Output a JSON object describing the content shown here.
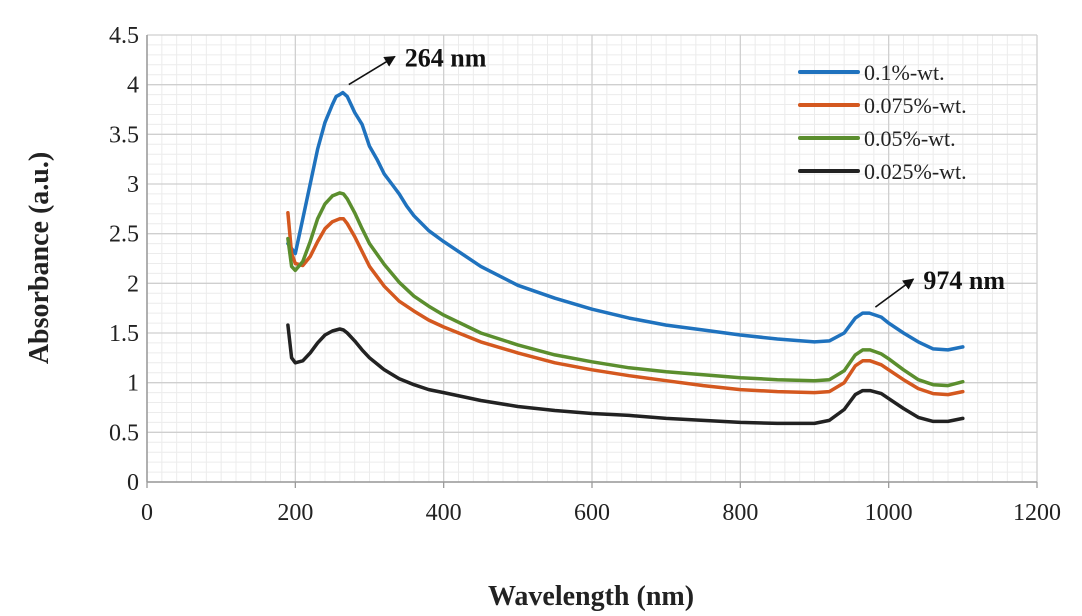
{
  "chart_data": {
    "type": "line",
    "title": "",
    "xlabel": "Wavelength (nm)",
    "ylabel": "Absorbance (a.u.)",
    "xlim": [
      0,
      1200
    ],
    "ylim": [
      0,
      4.5
    ],
    "xticks": [
      0,
      200,
      400,
      600,
      800,
      1000,
      1200
    ],
    "yticks": [
      0,
      0.5,
      1,
      1.5,
      2,
      2.5,
      3,
      3.5,
      4,
      4.5
    ],
    "ytick_labels": [
      "0",
      "0.5",
      "1",
      "1.5",
      "2",
      "2.5",
      "3",
      "3.5",
      "4",
      "4.5"
    ],
    "grid": "major and minor",
    "legend_position": "top-right",
    "series": [
      {
        "name": "0.1%-wt.",
        "color": "#1f72be",
        "x": [
          190,
          200,
          210,
          220,
          230,
          240,
          250,
          255,
          260,
          264,
          270,
          275,
          280,
          290,
          300,
          310,
          320,
          330,
          340,
          350,
          360,
          380,
          400,
          450,
          500,
          550,
          600,
          650,
          700,
          750,
          800,
          850,
          900,
          920,
          940,
          955,
          965,
          974,
          990,
          1000,
          1020,
          1040,
          1060,
          1080,
          1100
        ],
        "y": [
          2.4,
          2.3,
          2.65,
          3.0,
          3.35,
          3.62,
          3.8,
          3.88,
          3.9,
          3.92,
          3.88,
          3.8,
          3.72,
          3.6,
          3.38,
          3.25,
          3.1,
          3.0,
          2.9,
          2.78,
          2.68,
          2.53,
          2.42,
          2.17,
          1.98,
          1.85,
          1.74,
          1.65,
          1.58,
          1.53,
          1.48,
          1.44,
          1.41,
          1.42,
          1.5,
          1.65,
          1.7,
          1.7,
          1.66,
          1.6,
          1.5,
          1.41,
          1.34,
          1.33,
          1.36
        ]
      },
      {
        "name": "0.075%-wt.",
        "color": "#d4581f",
        "x": [
          190,
          195,
          200,
          210,
          220,
          230,
          240,
          250,
          260,
          265,
          270,
          280,
          290,
          300,
          320,
          340,
          360,
          380,
          400,
          450,
          500,
          550,
          600,
          650,
          700,
          750,
          800,
          850,
          900,
          920,
          940,
          955,
          965,
          975,
          990,
          1000,
          1020,
          1040,
          1060,
          1080,
          1100
        ],
        "y": [
          2.71,
          2.3,
          2.2,
          2.18,
          2.27,
          2.42,
          2.55,
          2.62,
          2.65,
          2.65,
          2.6,
          2.47,
          2.32,
          2.17,
          1.97,
          1.82,
          1.72,
          1.63,
          1.56,
          1.41,
          1.3,
          1.2,
          1.13,
          1.07,
          1.02,
          0.97,
          0.93,
          0.91,
          0.9,
          0.91,
          1.0,
          1.17,
          1.22,
          1.22,
          1.18,
          1.13,
          1.03,
          0.94,
          0.89,
          0.88,
          0.91
        ]
      },
      {
        "name": "0.05%-wt.",
        "color": "#5b8e2e",
        "x": [
          190,
          195,
          200,
          210,
          220,
          230,
          240,
          250,
          260,
          265,
          270,
          280,
          290,
          300,
          320,
          340,
          360,
          380,
          400,
          450,
          500,
          550,
          600,
          650,
          700,
          750,
          800,
          850,
          900,
          920,
          940,
          955,
          965,
          975,
          990,
          1000,
          1020,
          1040,
          1060,
          1080,
          1100
        ],
        "y": [
          2.45,
          2.17,
          2.13,
          2.22,
          2.42,
          2.65,
          2.8,
          2.88,
          2.91,
          2.9,
          2.85,
          2.71,
          2.55,
          2.4,
          2.19,
          2.01,
          1.87,
          1.77,
          1.68,
          1.5,
          1.38,
          1.28,
          1.21,
          1.15,
          1.11,
          1.08,
          1.05,
          1.03,
          1.02,
          1.03,
          1.12,
          1.28,
          1.33,
          1.33,
          1.29,
          1.24,
          1.13,
          1.03,
          0.98,
          0.97,
          1.01
        ]
      },
      {
        "name": "0.025%-wt.",
        "color": "#222222",
        "x": [
          190,
          195,
          200,
          210,
          220,
          230,
          240,
          250,
          260,
          265,
          270,
          280,
          290,
          300,
          320,
          340,
          360,
          380,
          400,
          450,
          500,
          550,
          600,
          650,
          700,
          750,
          800,
          850,
          900,
          920,
          940,
          955,
          965,
          975,
          990,
          1000,
          1020,
          1040,
          1060,
          1080,
          1100
        ],
        "y": [
          1.58,
          1.25,
          1.2,
          1.22,
          1.3,
          1.4,
          1.48,
          1.52,
          1.54,
          1.53,
          1.5,
          1.42,
          1.33,
          1.25,
          1.13,
          1.04,
          0.98,
          0.93,
          0.9,
          0.82,
          0.76,
          0.72,
          0.69,
          0.67,
          0.64,
          0.62,
          0.6,
          0.59,
          0.59,
          0.62,
          0.73,
          0.88,
          0.92,
          0.92,
          0.89,
          0.84,
          0.74,
          0.65,
          0.61,
          0.61,
          0.64
        ]
      }
    ],
    "annotations": [
      {
        "text": "264 nm",
        "x": 264
      },
      {
        "text": "974 nm",
        "x": 974
      }
    ]
  }
}
